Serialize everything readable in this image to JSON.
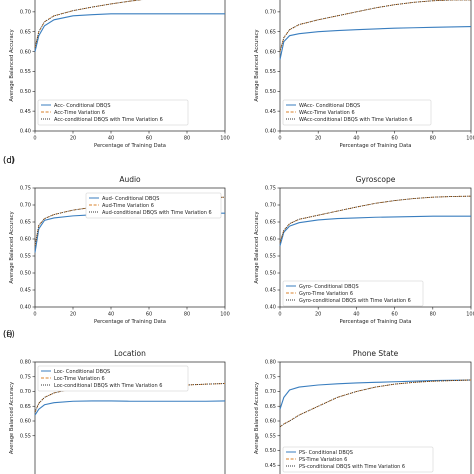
{
  "chart_data": [
    {
      "type": "line",
      "panel_label": "",
      "title": "",
      "xlabel": "Percentage of Training Data",
      "ylabel": "Average Balanced Accuracy",
      "xlim": [
        0,
        100
      ],
      "ylim": [
        0.4,
        0.75
      ],
      "x_ticks": [
        0,
        20,
        40,
        60,
        80,
        100
      ],
      "y_ticks": [
        0.4,
        0.45,
        0.5,
        0.55,
        0.6,
        0.65,
        0.7,
        0.75
      ],
      "legend_position": "lower-left",
      "series": [
        {
          "name": "Acc- Conditional DBQS",
          "color": "#3a7ebf",
          "style": "solid",
          "x": [
            0,
            2,
            5,
            10,
            20,
            30,
            40,
            50,
            60,
            70,
            80,
            90,
            100
          ],
          "y": [
            0.6,
            0.64,
            0.665,
            0.68,
            0.69,
            0.693,
            0.695,
            0.695,
            0.695,
            0.695,
            0.695,
            0.695,
            0.695
          ]
        },
        {
          "name": "Acc-Time Variation 6",
          "color": "#d9822b",
          "style": "dashed",
          "x": [
            0,
            2,
            5,
            10,
            20,
            30,
            40,
            50,
            60,
            70,
            80,
            90,
            100
          ],
          "y": [
            0.61,
            0.65,
            0.675,
            0.69,
            0.703,
            0.712,
            0.72,
            0.727,
            0.733,
            0.737,
            0.74,
            0.741,
            0.742
          ]
        },
        {
          "name": "Acc-conditional DBQS with Time Variation 6",
          "color": "#333333",
          "style": "dotted",
          "x": [
            0,
            2,
            5,
            10,
            20,
            30,
            40,
            50,
            60,
            70,
            80,
            90,
            100
          ],
          "y": [
            0.61,
            0.65,
            0.675,
            0.69,
            0.703,
            0.712,
            0.72,
            0.727,
            0.733,
            0.737,
            0.74,
            0.741,
            0.742
          ]
        }
      ]
    },
    {
      "type": "line",
      "panel_label": "",
      "title": "",
      "xlabel": "Percentage of Training Data",
      "ylabel": "Average Balanced Accuracy",
      "xlim": [
        0,
        100
      ],
      "ylim": [
        0.4,
        0.75
      ],
      "x_ticks": [
        0,
        20,
        40,
        60,
        80,
        100
      ],
      "y_ticks": [
        0.4,
        0.45,
        0.5,
        0.55,
        0.6,
        0.65,
        0.7,
        0.75
      ],
      "legend_position": "lower-left",
      "series": [
        {
          "name": "WAcc- Conditional DBQS",
          "color": "#3a7ebf",
          "style": "solid",
          "x": [
            0,
            2,
            5,
            10,
            20,
            30,
            40,
            50,
            60,
            70,
            80,
            90,
            100
          ],
          "y": [
            0.58,
            0.625,
            0.64,
            0.645,
            0.65,
            0.653,
            0.655,
            0.657,
            0.659,
            0.66,
            0.661,
            0.662,
            0.663
          ]
        },
        {
          "name": "WAcc-Time Variation 6",
          "color": "#d9822b",
          "style": "dashed",
          "x": [
            0,
            2,
            5,
            10,
            20,
            30,
            40,
            50,
            60,
            70,
            80,
            90,
            100
          ],
          "y": [
            0.6,
            0.635,
            0.655,
            0.668,
            0.68,
            0.69,
            0.7,
            0.71,
            0.718,
            0.724,
            0.728,
            0.73,
            0.73
          ]
        },
        {
          "name": "WAcc-conditional DBQS with Time Variation 6",
          "color": "#333333",
          "style": "dotted",
          "x": [
            0,
            2,
            5,
            10,
            20,
            30,
            40,
            50,
            60,
            70,
            80,
            90,
            100
          ],
          "y": [
            0.6,
            0.635,
            0.655,
            0.668,
            0.68,
            0.69,
            0.7,
            0.71,
            0.718,
            0.724,
            0.728,
            0.73,
            0.73
          ]
        }
      ]
    },
    {
      "type": "line",
      "panel_label": "(c)",
      "title": "Audio",
      "xlabel": "Percentage of Training Data",
      "ylabel": "Average Balanced Accuracy",
      "xlim": [
        0,
        100
      ],
      "ylim": [
        0.4,
        0.75
      ],
      "x_ticks": [
        0,
        20,
        40,
        60,
        80,
        100
      ],
      "y_ticks": [
        0.4,
        0.45,
        0.5,
        0.55,
        0.6,
        0.65,
        0.7,
        0.75
      ],
      "legend_position": "upper-center",
      "series": [
        {
          "name": "Aud- Conditional DBQS",
          "color": "#3a7ebf",
          "style": "solid",
          "x": [
            0,
            2,
            5,
            10,
            20,
            30,
            40,
            50,
            60,
            70,
            80,
            90,
            100
          ],
          "y": [
            0.56,
            0.63,
            0.655,
            0.662,
            0.668,
            0.671,
            0.673,
            0.674,
            0.675,
            0.675,
            0.676,
            0.676,
            0.676
          ]
        },
        {
          "name": "Aud-Time Variation 6",
          "color": "#d9822b",
          "style": "dashed",
          "x": [
            0,
            2,
            5,
            10,
            20,
            30,
            40,
            50,
            60,
            70,
            80,
            90,
            100
          ],
          "y": [
            0.58,
            0.64,
            0.66,
            0.672,
            0.685,
            0.693,
            0.7,
            0.706,
            0.711,
            0.715,
            0.718,
            0.721,
            0.723
          ]
        },
        {
          "name": "Aud-conditional DBQS with Time Variation 6",
          "color": "#333333",
          "style": "dotted",
          "x": [
            0,
            2,
            5,
            10,
            20,
            30,
            40,
            50,
            60,
            70,
            80,
            90,
            100
          ],
          "y": [
            0.58,
            0.64,
            0.66,
            0.672,
            0.685,
            0.693,
            0.7,
            0.706,
            0.711,
            0.715,
            0.718,
            0.721,
            0.723
          ]
        }
      ]
    },
    {
      "type": "line",
      "panel_label": "(d)",
      "title": "Gyroscope",
      "xlabel": "Percentage of Training Data",
      "ylabel": "Average Balanced Accuracy",
      "xlim": [
        0,
        100
      ],
      "ylim": [
        0.4,
        0.75
      ],
      "x_ticks": [
        0,
        20,
        40,
        60,
        80,
        100
      ],
      "y_ticks": [
        0.4,
        0.45,
        0.5,
        0.55,
        0.6,
        0.65,
        0.7,
        0.75
      ],
      "legend_position": "lower-left",
      "series": [
        {
          "name": "Gyro- Conditional DBQS",
          "color": "#3a7ebf",
          "style": "solid",
          "x": [
            0,
            2,
            5,
            10,
            20,
            30,
            40,
            50,
            60,
            70,
            80,
            90,
            100
          ],
          "y": [
            0.58,
            0.62,
            0.638,
            0.648,
            0.656,
            0.66,
            0.662,
            0.664,
            0.665,
            0.666,
            0.667,
            0.667,
            0.667
          ]
        },
        {
          "name": "Gyro-Time Variation 6",
          "color": "#d9822b",
          "style": "dashed",
          "x": [
            0,
            2,
            5,
            10,
            20,
            30,
            40,
            50,
            60,
            70,
            80,
            90,
            100
          ],
          "y": [
            0.59,
            0.625,
            0.645,
            0.658,
            0.67,
            0.682,
            0.694,
            0.705,
            0.713,
            0.719,
            0.723,
            0.725,
            0.726
          ]
        },
        {
          "name": "Gyro-conditional DBQS with Time Variation 6",
          "color": "#333333",
          "style": "dotted",
          "x": [
            0,
            2,
            5,
            10,
            20,
            30,
            40,
            50,
            60,
            70,
            80,
            90,
            100
          ],
          "y": [
            0.59,
            0.625,
            0.645,
            0.658,
            0.67,
            0.682,
            0.694,
            0.705,
            0.713,
            0.719,
            0.723,
            0.725,
            0.726
          ]
        }
      ]
    },
    {
      "type": "line",
      "panel_label": "(e)",
      "title": "Location",
      "xlabel": "",
      "ylabel": "Average Balanced Accuracy",
      "xlim": [
        0,
        100
      ],
      "ylim": [
        0.4,
        0.8
      ],
      "x_ticks": [],
      "y_ticks": [
        0.55,
        0.6,
        0.65,
        0.7,
        0.75,
        0.8
      ],
      "legend_position": "upper-left",
      "series": [
        {
          "name": "Loc- Conditional DBQS",
          "color": "#3a7ebf",
          "style": "solid",
          "x": [
            0,
            2,
            5,
            10,
            20,
            30,
            40,
            50,
            60,
            70,
            80,
            90,
            100
          ],
          "y": [
            0.62,
            0.64,
            0.655,
            0.662,
            0.667,
            0.668,
            0.668,
            0.667,
            0.667,
            0.667,
            0.667,
            0.667,
            0.668
          ]
        },
        {
          "name": "Loc-Time Variation 6",
          "color": "#d9822b",
          "style": "dashed",
          "x": [
            0,
            2,
            5,
            10,
            20,
            30,
            40,
            50,
            60,
            70,
            80,
            90,
            100
          ],
          "y": [
            0.63,
            0.66,
            0.68,
            0.695,
            0.71,
            0.717,
            0.72,
            0.72,
            0.72,
            0.72,
            0.722,
            0.725,
            0.727
          ]
        },
        {
          "name": "Loc-conditional DBQS with Time Variation 6",
          "color": "#333333",
          "style": "dotted",
          "x": [
            0,
            2,
            5,
            10,
            20,
            30,
            40,
            50,
            60,
            70,
            80,
            90,
            100
          ],
          "y": [
            0.63,
            0.66,
            0.68,
            0.695,
            0.71,
            0.717,
            0.72,
            0.72,
            0.72,
            0.72,
            0.722,
            0.725,
            0.727
          ]
        }
      ]
    },
    {
      "type": "line",
      "panel_label": "(f)",
      "title": "Phone State",
      "xlabel": "",
      "ylabel": "Average Balanced Accuracy",
      "xlim": [
        0,
        100
      ],
      "ylim": [
        0.4,
        0.8
      ],
      "x_ticks": [],
      "y_ticks": [
        0.45,
        0.5,
        0.55,
        0.6,
        0.65,
        0.7,
        0.75,
        0.8
      ],
      "legend_position": "lower-left",
      "series": [
        {
          "name": "PS- Conditional DBQS",
          "color": "#3a7ebf",
          "style": "solid",
          "x": [
            0,
            2,
            5,
            10,
            20,
            30,
            40,
            50,
            60,
            70,
            80,
            90,
            100
          ],
          "y": [
            0.64,
            0.68,
            0.705,
            0.715,
            0.722,
            0.726,
            0.729,
            0.731,
            0.733,
            0.735,
            0.737,
            0.738,
            0.739
          ]
        },
        {
          "name": "PS-Time Variation 6",
          "color": "#d9822b",
          "style": "dashed",
          "x": [
            0,
            2,
            5,
            10,
            20,
            30,
            40,
            50,
            60,
            70,
            80,
            90,
            100
          ],
          "y": [
            0.58,
            0.59,
            0.6,
            0.62,
            0.65,
            0.68,
            0.7,
            0.715,
            0.725,
            0.731,
            0.735,
            0.737,
            0.739
          ]
        },
        {
          "name": "PS-conditional DBQS with Time Variation 6",
          "color": "#333333",
          "style": "dotted",
          "x": [
            0,
            2,
            5,
            10,
            20,
            30,
            40,
            50,
            60,
            70,
            80,
            90,
            100
          ],
          "y": [
            0.58,
            0.59,
            0.6,
            0.62,
            0.65,
            0.68,
            0.7,
            0.715,
            0.725,
            0.731,
            0.735,
            0.737,
            0.739
          ]
        }
      ]
    }
  ]
}
